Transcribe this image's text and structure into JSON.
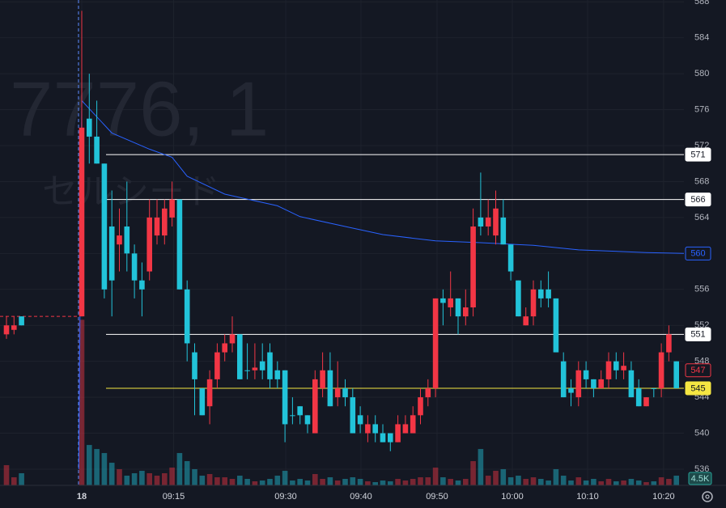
{
  "chart_data": {
    "type": "candlestick",
    "symbol": "7776, 1",
    "name": "セルシード",
    "x": [
      -10,
      -9,
      -8,
      0,
      1,
      2,
      3,
      4,
      5,
      6,
      7,
      8,
      9,
      10,
      11,
      12,
      13,
      14,
      15,
      16,
      17,
      18,
      19,
      20,
      21,
      22,
      23,
      24,
      25,
      26,
      27,
      28,
      29,
      30,
      31,
      32,
      33,
      34,
      35,
      36,
      37,
      38,
      39,
      40,
      41,
      42,
      43,
      44,
      45,
      46,
      47,
      48,
      49,
      50,
      51,
      52,
      53,
      54,
      55,
      56,
      57,
      58,
      59,
      60,
      61,
      62,
      63,
      64,
      65,
      66,
      67,
      68,
      69,
      70,
      71,
      72,
      73,
      74,
      75,
      76,
      77,
      78,
      79
    ],
    "open": [
      551,
      551.5,
      553,
      553,
      575,
      573,
      570,
      563,
      561,
      563,
      560,
      557,
      558,
      562,
      562,
      564,
      566,
      556,
      549,
      545,
      543,
      546,
      549,
      550,
      551,
      547,
      547,
      548,
      549,
      547,
      547,
      542,
      543,
      542,
      540,
      545,
      547,
      544,
      545,
      544,
      542,
      540,
      541,
      540,
      540,
      539,
      540,
      540,
      542,
      544,
      545,
      555,
      554,
      555,
      553,
      554,
      564,
      563,
      562,
      564,
      561,
      557,
      552,
      553,
      556,
      556,
      555,
      548,
      545,
      544,
      547,
      546,
      545,
      546,
      548,
      547,
      547,
      545,
      543,
      545,
      545,
      549,
      548
    ],
    "high": [
      553,
      553,
      553,
      587,
      580,
      577,
      570,
      567,
      565,
      568,
      561,
      559,
      566,
      566,
      566,
      568,
      566,
      557,
      550,
      545,
      547,
      550,
      551,
      553,
      551,
      550,
      550,
      550,
      550,
      548,
      547,
      544,
      543,
      542,
      547,
      549,
      549,
      548,
      546,
      545,
      543,
      542,
      542,
      541,
      540,
      542,
      542,
      543,
      545,
      546,
      555,
      556,
      558,
      555,
      556,
      565,
      569,
      566,
      567,
      566,
      561,
      557,
      554,
      557,
      557,
      558,
      555,
      549,
      546,
      548,
      548,
      546,
      547,
      549,
      549,
      549,
      548,
      546,
      544,
      545,
      550,
      552,
      548
    ],
    "low": [
      550.5,
      551,
      552,
      553,
      570,
      570,
      555,
      553,
      558,
      558,
      555,
      553,
      557,
      561,
      561,
      563,
      556,
      548,
      542,
      542,
      541,
      545,
      548,
      549,
      546,
      546,
      546,
      546,
      545,
      545,
      539,
      541,
      541,
      540,
      540,
      544,
      543,
      543,
      543,
      540,
      540,
      539,
      539,
      539,
      538,
      539,
      540,
      540,
      541,
      543,
      544,
      552,
      553,
      551,
      552,
      553,
      562,
      562,
      561,
      561,
      557,
      553,
      552,
      552,
      554,
      554,
      549,
      544,
      543,
      543,
      545,
      544,
      545,
      545,
      546,
      546,
      544,
      543,
      543,
      544,
      544,
      548,
      545
    ],
    "close": [
      552,
      552,
      552,
      574,
      573,
      570,
      556,
      557,
      562,
      560,
      557,
      556,
      564,
      564,
      565,
      566,
      556,
      550,
      546,
      542,
      546,
      549,
      550,
      551,
      546,
      547,
      547.3,
      547,
      546,
      546,
      541,
      542,
      542,
      541,
      546,
      547,
      543,
      545,
      544,
      540,
      541,
      541,
      540,
      539,
      539,
      541,
      541,
      542,
      544,
      545,
      555,
      554.5,
      555,
      553,
      554,
      563,
      563,
      564,
      565,
      561,
      558,
      553,
      553,
      556,
      555,
      555,
      549,
      544,
      544.5,
      547,
      546,
      545,
      546,
      548,
      547,
      547.5,
      544,
      543,
      544,
      545,
      549,
      551,
      545
    ],
    "volume": [
      9375,
      3750,
      5625,
      76875,
      18750,
      16875,
      15000,
      10500,
      7500,
      4500,
      5625,
      6750,
      5625,
      4500,
      5625,
      8250,
      15000,
      11250,
      7500,
      4500,
      5250,
      3750,
      3750,
      3000,
      4500,
      3000,
      1875,
      2250,
      3000,
      4500,
      6750,
      2250,
      3000,
      2250,
      5250,
      3000,
      3750,
      2250,
      3000,
      3750,
      3000,
      1875,
      1500,
      2250,
      1875,
      3000,
      2250,
      3000,
      3750,
      3750,
      8250,
      3750,
      3000,
      2250,
      3000,
      11250,
      16875,
      4500,
      6750,
      7500,
      3750,
      4500,
      3000,
      3750,
      3000,
      2250,
      7500,
      4500,
      2250,
      3750,
      2250,
      3000,
      1875,
      3000,
      1875,
      2250,
      3000,
      2250,
      1500,
      1875,
      3750,
      3000,
      4500
    ],
    "volume_last_label": "4.5K",
    "volume_ylim": [
      0,
      80000
    ],
    "up_color": "#f23645",
    "down_color": "#22c3d9",
    "vwap": {
      "color": "#2962ff",
      "x": [
        -0.4,
        0,
        4,
        9,
        12,
        14,
        19,
        26,
        29,
        35,
        40,
        47,
        53,
        60,
        66,
        75,
        80
      ],
      "values": [
        536,
        577,
        573.4,
        571.6,
        570.7,
        568.6,
        566.6,
        565.3,
        564.1,
        563,
        562.1,
        561.4,
        561.2,
        560.9,
        560.4,
        560.1,
        560
      ]
    },
    "hlines": [
      {
        "value": 571,
        "color": "#ffffff"
      },
      {
        "value": 566,
        "color": "#ffffff"
      },
      {
        "value": 551,
        "color": "#ffffff"
      },
      {
        "value": 545,
        "color": "#f5e642"
      }
    ],
    "prev_close": 553,
    "last_price": 547,
    "xlim": [
      -10.86,
      80
    ],
    "ylim": [
      534.2,
      588.2
    ],
    "yticks": [
      588,
      584,
      580,
      576,
      572,
      568,
      564,
      560,
      556,
      552,
      548,
      544,
      540,
      536
    ],
    "xticks": [
      {
        "value": 0,
        "label": "18"
      },
      {
        "value": 12.2,
        "label": "09:15"
      },
      {
        "value": 27.1,
        "label": "09:30"
      },
      {
        "value": 37.1,
        "label": "09:40"
      },
      {
        "value": 47.2,
        "label": "09:50"
      },
      {
        "value": 57.2,
        "label": "10:00"
      },
      {
        "value": 67.2,
        "label": "10:10"
      },
      {
        "value": 77.3,
        "label": "10:20"
      }
    ],
    "grid": true
  }
}
